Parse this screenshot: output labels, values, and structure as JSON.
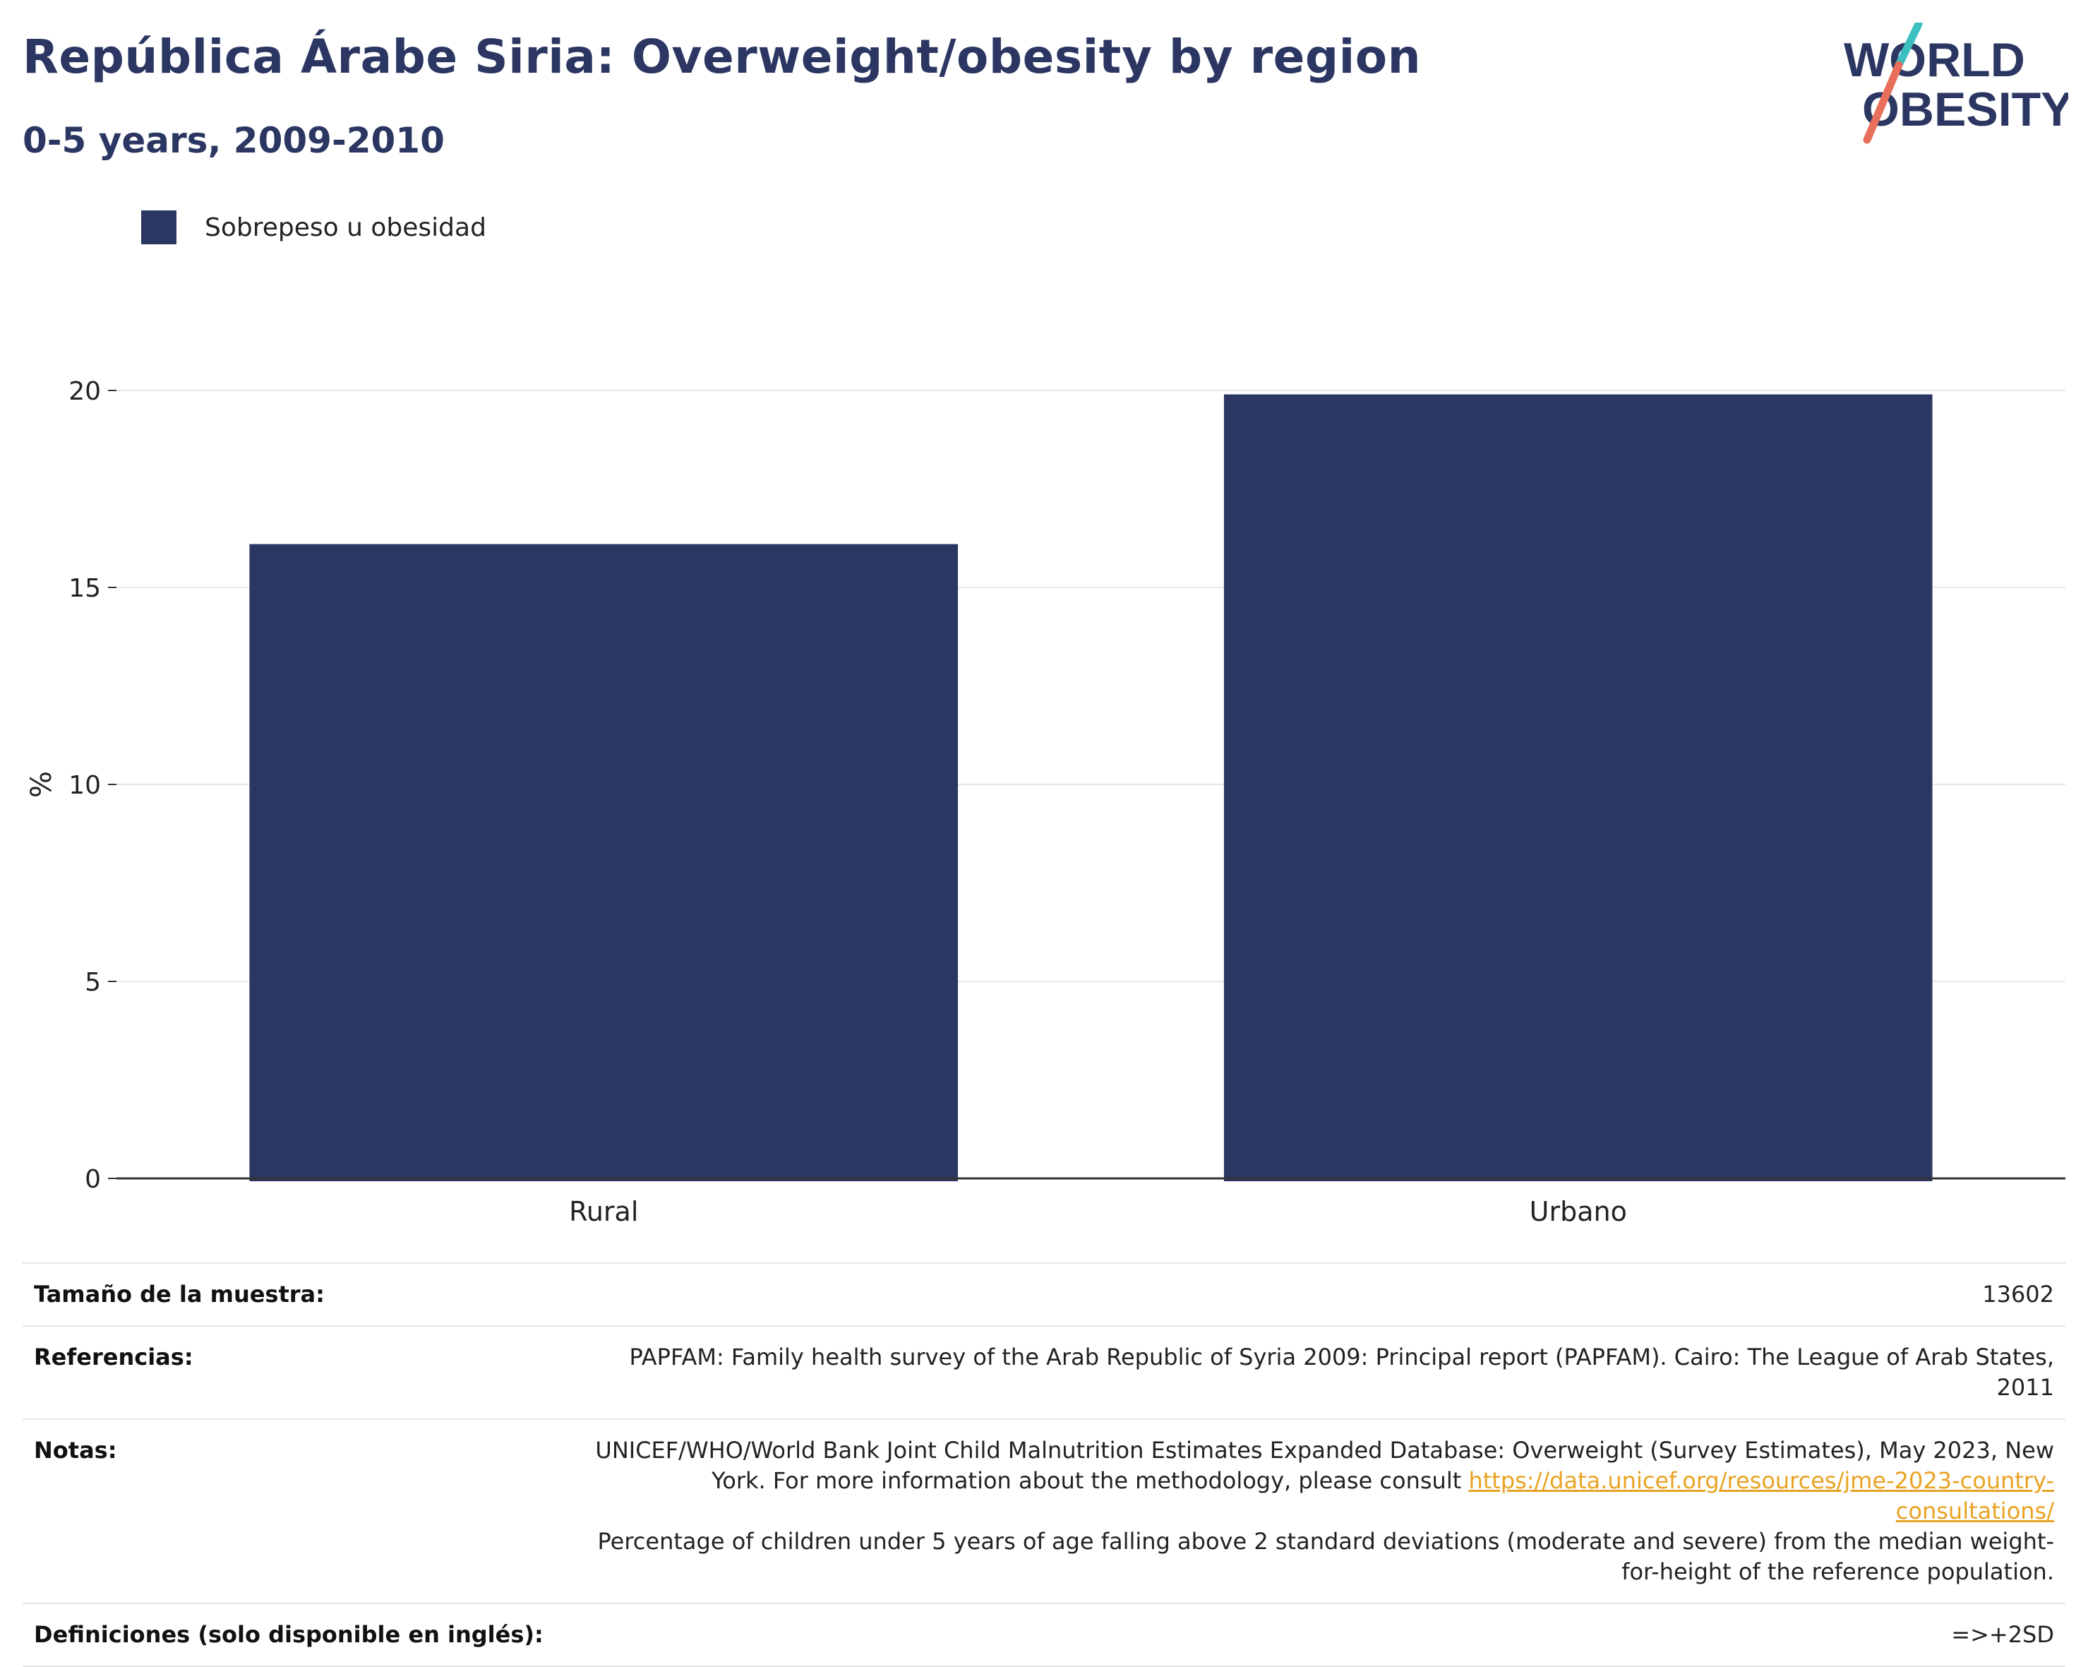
{
  "header": {
    "title": "República Árabe Siria: Overweight/obesity by region",
    "subtitle": "0-5 years, 2009-2010"
  },
  "logo": {
    "line1": "WORLD",
    "line2": "OBESITY",
    "colors": {
      "text": "#2b3762",
      "slash_top": "#3bbfbf",
      "slash_bottom": "#e8705a"
    }
  },
  "legend": {
    "label": "Sobrepeso u obesidad",
    "color": "#2b3762"
  },
  "chart_data": {
    "type": "bar",
    "categories": [
      "Rural",
      "Urbano"
    ],
    "series": [
      {
        "name": "Sobrepeso u obesidad",
        "values": [
          16.1,
          19.9
        ],
        "color": "#2b3762"
      }
    ],
    "ylabel": "%",
    "xlabel": "",
    "ylim": [
      0,
      20
    ],
    "yticks": [
      0,
      5,
      10,
      15,
      20
    ],
    "grid": true,
    "legend_position": "top-left"
  },
  "info": {
    "sample_label": "Tamaño de la muestra:",
    "sample_value": "13602",
    "references_label": "Referencias:",
    "references_value": "PAPFAM: Family health survey of the Arab Republic of Syria 2009: Principal report (PAPFAM). Cairo: The League of Arab States, 2011",
    "notes_label": "Notas:",
    "notes_text1": "UNICEF/WHO/World Bank Joint Child Malnutrition Estimates Expanded Database: Overweight (Survey Estimates), May 2023, New York. For more information about the methodology, please consult ",
    "notes_link": "https://data.unicef.org/resources/jme-2023-country-consultations/",
    "notes_text2": "Percentage of children under 5 years of age falling above 2 standard deviations (moderate and severe) from the median weight-for-height of the reference population.",
    "definitions_label": "Definiciones (solo disponible en inglés):",
    "definitions_value": "=>+2SD"
  }
}
